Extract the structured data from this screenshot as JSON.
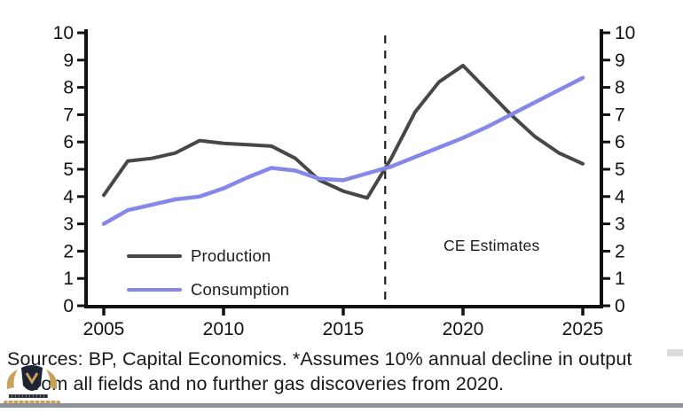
{
  "chart_data": {
    "type": "line",
    "x": [
      2005,
      2006,
      2007,
      2008,
      2009,
      2010,
      2011,
      2012,
      2013,
      2014,
      2015,
      2016,
      2017,
      2018,
      2019,
      2020,
      2021,
      2022,
      2023,
      2024,
      2025
    ],
    "series": [
      {
        "name": "Production",
        "color": "#474747",
        "width": 4,
        "values": [
          4.05,
          5.3,
          5.4,
          5.6,
          6.05,
          5.95,
          5.9,
          5.85,
          5.4,
          4.6,
          4.2,
          3.95,
          5.4,
          7.1,
          8.2,
          8.8,
          7.9,
          7.0,
          6.2,
          5.6,
          5.2
        ]
      },
      {
        "name": "Consumption",
        "color": "#8688e9",
        "width": 4.5,
        "values": [
          3.0,
          3.5,
          3.7,
          3.9,
          4.0,
          4.3,
          4.7,
          5.05,
          4.95,
          4.65,
          4.6,
          4.85,
          5.1,
          5.45,
          5.8,
          6.15,
          6.55,
          7.0,
          7.45,
          7.9,
          8.35
        ]
      }
    ],
    "title": "",
    "xlabel": "",
    "ylabel": "",
    "ylim": [
      0,
      10
    ],
    "xlim": [
      2005,
      2025
    ],
    "yticks": [
      0,
      1,
      2,
      3,
      4,
      5,
      6,
      7,
      8,
      9,
      10
    ],
    "xticks": [
      2005,
      2010,
      2015,
      2020,
      2025
    ],
    "dual_y_axis": true,
    "grid": false,
    "forecast_divider_year": 2016.75,
    "divider_style": "dashed",
    "annotation": "CE Estimates",
    "legend_position": "inside-bottom-left",
    "axis_color": "#111111",
    "dashed_line_color": "#222222"
  },
  "legend": {
    "items": [
      {
        "label": "Production"
      },
      {
        "label": "Consumption"
      }
    ]
  },
  "annotation": {
    "label": "CE Estimates"
  },
  "footer": {
    "line1": "Sources: BP, Capital Economics. *Assumes 10% annual decline in output",
    "line2": "from all fields and no further gas discoveries from 2020."
  }
}
